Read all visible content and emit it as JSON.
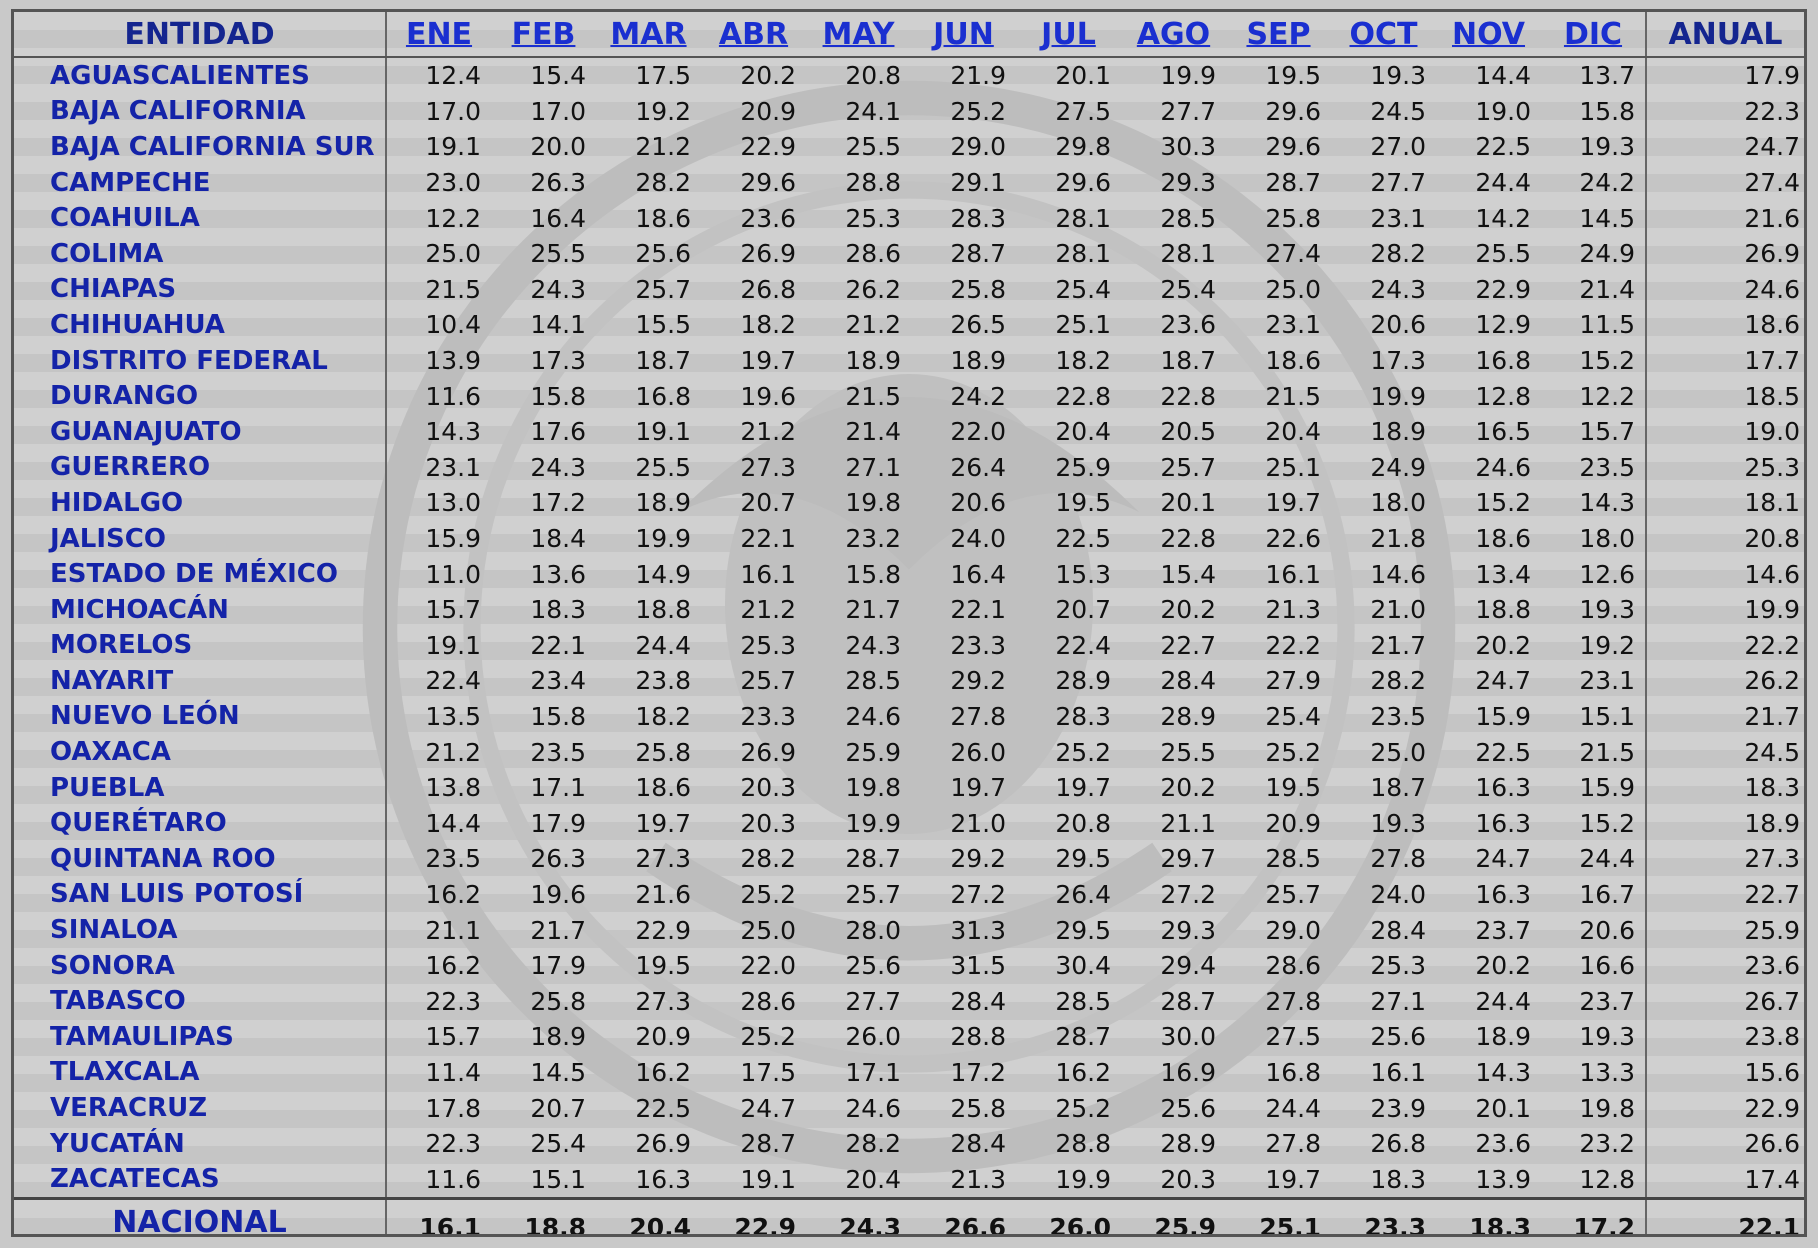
{
  "table": {
    "header_entity": "ENTIDAD",
    "header_annual": "ANUAL",
    "months": [
      "ENE",
      "FEB",
      "MAR",
      "ABR",
      "MAY",
      "JUN",
      "JUL",
      "AGO",
      "SEP",
      "OCT",
      "NOV",
      "DIC"
    ],
    "rows": [
      {
        "name": "AGUASCALIENTES",
        "values": [
          "12.4",
          "15.4",
          "17.5",
          "20.2",
          "20.8",
          "21.9",
          "20.1",
          "19.9",
          "19.5",
          "19.3",
          "14.4",
          "13.7"
        ],
        "annual": "17.9"
      },
      {
        "name": "BAJA CALIFORNIA",
        "values": [
          "17.0",
          "17.0",
          "19.2",
          "20.9",
          "24.1",
          "25.2",
          "27.5",
          "27.7",
          "29.6",
          "24.5",
          "19.0",
          "15.8"
        ],
        "annual": "22.3"
      },
      {
        "name": "BAJA CALIFORNIA SUR",
        "values": [
          "19.1",
          "20.0",
          "21.2",
          "22.9",
          "25.5",
          "29.0",
          "29.8",
          "30.3",
          "29.6",
          "27.0",
          "22.5",
          "19.3"
        ],
        "annual": "24.7"
      },
      {
        "name": "CAMPECHE",
        "values": [
          "23.0",
          "26.3",
          "28.2",
          "29.6",
          "28.8",
          "29.1",
          "29.6",
          "29.3",
          "28.7",
          "27.7",
          "24.4",
          "24.2"
        ],
        "annual": "27.4"
      },
      {
        "name": "COAHUILA",
        "values": [
          "12.2",
          "16.4",
          "18.6",
          "23.6",
          "25.3",
          "28.3",
          "28.1",
          "28.5",
          "25.8",
          "23.1",
          "14.2",
          "14.5"
        ],
        "annual": "21.6"
      },
      {
        "name": "COLIMA",
        "values": [
          "25.0",
          "25.5",
          "25.6",
          "26.9",
          "28.6",
          "28.7",
          "28.1",
          "28.1",
          "27.4",
          "28.2",
          "25.5",
          "24.9"
        ],
        "annual": "26.9"
      },
      {
        "name": "CHIAPAS",
        "values": [
          "21.5",
          "24.3",
          "25.7",
          "26.8",
          "26.2",
          "25.8",
          "25.4",
          "25.4",
          "25.0",
          "24.3",
          "22.9",
          "21.4"
        ],
        "annual": "24.6"
      },
      {
        "name": "CHIHUAHUA",
        "values": [
          "10.4",
          "14.1",
          "15.5",
          "18.2",
          "21.2",
          "26.5",
          "25.1",
          "23.6",
          "23.1",
          "20.6",
          "12.9",
          "11.5"
        ],
        "annual": "18.6"
      },
      {
        "name": "DISTRITO FEDERAL",
        "values": [
          "13.9",
          "17.3",
          "18.7",
          "19.7",
          "18.9",
          "18.9",
          "18.2",
          "18.7",
          "18.6",
          "17.3",
          "16.8",
          "15.2"
        ],
        "annual": "17.7"
      },
      {
        "name": "DURANGO",
        "values": [
          "11.6",
          "15.8",
          "16.8",
          "19.6",
          "21.5",
          "24.2",
          "22.8",
          "22.8",
          "21.5",
          "19.9",
          "12.8",
          "12.2"
        ],
        "annual": "18.5"
      },
      {
        "name": "GUANAJUATO",
        "values": [
          "14.3",
          "17.6",
          "19.1",
          "21.2",
          "21.4",
          "22.0",
          "20.4",
          "20.5",
          "20.4",
          "18.9",
          "16.5",
          "15.7"
        ],
        "annual": "19.0"
      },
      {
        "name": "GUERRERO",
        "values": [
          "23.1",
          "24.3",
          "25.5",
          "27.3",
          "27.1",
          "26.4",
          "25.9",
          "25.7",
          "25.1",
          "24.9",
          "24.6",
          "23.5"
        ],
        "annual": "25.3"
      },
      {
        "name": "HIDALGO",
        "values": [
          "13.0",
          "17.2",
          "18.9",
          "20.7",
          "19.8",
          "20.6",
          "19.5",
          "20.1",
          "19.7",
          "18.0",
          "15.2",
          "14.3"
        ],
        "annual": "18.1"
      },
      {
        "name": "JALISCO",
        "values": [
          "15.9",
          "18.4",
          "19.9",
          "22.1",
          "23.2",
          "24.0",
          "22.5",
          "22.8",
          "22.6",
          "21.8",
          "18.6",
          "18.0"
        ],
        "annual": "20.8"
      },
      {
        "name": "ESTADO DE MÉXICO",
        "values": [
          "11.0",
          "13.6",
          "14.9",
          "16.1",
          "15.8",
          "16.4",
          "15.3",
          "15.4",
          "16.1",
          "14.6",
          "13.4",
          "12.6"
        ],
        "annual": "14.6"
      },
      {
        "name": "MICHOACÁN",
        "values": [
          "15.7",
          "18.3",
          "18.8",
          "21.2",
          "21.7",
          "22.1",
          "20.7",
          "20.2",
          "21.3",
          "21.0",
          "18.8",
          "19.3"
        ],
        "annual": "19.9"
      },
      {
        "name": "MORELOS",
        "values": [
          "19.1",
          "22.1",
          "24.4",
          "25.3",
          "24.3",
          "23.3",
          "22.4",
          "22.7",
          "22.2",
          "21.7",
          "20.2",
          "19.2"
        ],
        "annual": "22.2"
      },
      {
        "name": "NAYARIT",
        "values": [
          "22.4",
          "23.4",
          "23.8",
          "25.7",
          "28.5",
          "29.2",
          "28.9",
          "28.4",
          "27.9",
          "28.2",
          "24.7",
          "23.1"
        ],
        "annual": "26.2"
      },
      {
        "name": "NUEVO LEÓN",
        "values": [
          "13.5",
          "15.8",
          "18.2",
          "23.3",
          "24.6",
          "27.8",
          "28.3",
          "28.9",
          "25.4",
          "23.5",
          "15.9",
          "15.1"
        ],
        "annual": "21.7"
      },
      {
        "name": "OAXACA",
        "values": [
          "21.2",
          "23.5",
          "25.8",
          "26.9",
          "25.9",
          "26.0",
          "25.2",
          "25.5",
          "25.2",
          "25.0",
          "22.5",
          "21.5"
        ],
        "annual": "24.5"
      },
      {
        "name": "PUEBLA",
        "values": [
          "13.8",
          "17.1",
          "18.6",
          "20.3",
          "19.8",
          "19.7",
          "19.7",
          "20.2",
          "19.5",
          "18.7",
          "16.3",
          "15.9"
        ],
        "annual": "18.3"
      },
      {
        "name": "QUERÉTARO",
        "values": [
          "14.4",
          "17.9",
          "19.7",
          "20.3",
          "19.9",
          "21.0",
          "20.8",
          "21.1",
          "20.9",
          "19.3",
          "16.3",
          "15.2"
        ],
        "annual": "18.9"
      },
      {
        "name": "QUINTANA ROO",
        "values": [
          "23.5",
          "26.3",
          "27.3",
          "28.2",
          "28.7",
          "29.2",
          "29.5",
          "29.7",
          "28.5",
          "27.8",
          "24.7",
          "24.4"
        ],
        "annual": "27.3"
      },
      {
        "name": "SAN LUIS POTOSÍ",
        "values": [
          "16.2",
          "19.6",
          "21.6",
          "25.2",
          "25.7",
          "27.2",
          "26.4",
          "27.2",
          "25.7",
          "24.0",
          "16.3",
          "16.7"
        ],
        "annual": "22.7"
      },
      {
        "name": "SINALOA",
        "values": [
          "21.1",
          "21.7",
          "22.9",
          "25.0",
          "28.0",
          "31.3",
          "29.5",
          "29.3",
          "29.0",
          "28.4",
          "23.7",
          "20.6"
        ],
        "annual": "25.9"
      },
      {
        "name": "SONORA",
        "values": [
          "16.2",
          "17.9",
          "19.5",
          "22.0",
          "25.6",
          "31.5",
          "30.4",
          "29.4",
          "28.6",
          "25.3",
          "20.2",
          "16.6"
        ],
        "annual": "23.6"
      },
      {
        "name": "TABASCO",
        "values": [
          "22.3",
          "25.8",
          "27.3",
          "28.6",
          "27.7",
          "28.4",
          "28.5",
          "28.7",
          "27.8",
          "27.1",
          "24.4",
          "23.7"
        ],
        "annual": "26.7"
      },
      {
        "name": "TAMAULIPAS",
        "values": [
          "15.7",
          "18.9",
          "20.9",
          "25.2",
          "26.0",
          "28.8",
          "28.7",
          "30.0",
          "27.5",
          "25.6",
          "18.9",
          "19.3"
        ],
        "annual": "23.8"
      },
      {
        "name": "TLAXCALA",
        "values": [
          "11.4",
          "14.5",
          "16.2",
          "17.5",
          "17.1",
          "17.2",
          "16.2",
          "16.9",
          "16.8",
          "16.1",
          "14.3",
          "13.3"
        ],
        "annual": "15.6"
      },
      {
        "name": "VERACRUZ",
        "values": [
          "17.8",
          "20.7",
          "22.5",
          "24.7",
          "24.6",
          "25.8",
          "25.2",
          "25.6",
          "24.4",
          "23.9",
          "20.1",
          "19.8"
        ],
        "annual": "22.9"
      },
      {
        "name": "YUCATÁN",
        "values": [
          "22.3",
          "25.4",
          "26.9",
          "28.7",
          "28.2",
          "28.4",
          "28.8",
          "28.9",
          "27.8",
          "26.8",
          "23.6",
          "23.2"
        ],
        "annual": "26.6"
      },
      {
        "name": "ZACATECAS",
        "values": [
          "11.6",
          "15.1",
          "16.3",
          "19.1",
          "20.4",
          "21.3",
          "19.9",
          "20.3",
          "19.7",
          "18.3",
          "13.9",
          "12.8"
        ],
        "annual": "17.4"
      }
    ],
    "total": {
      "name": "NACIONAL",
      "values": [
        "16.1",
        "18.8",
        "20.4",
        "22.9",
        "24.3",
        "26.6",
        "26.0",
        "25.9",
        "25.1",
        "23.3",
        "18.3",
        "17.2"
      ],
      "annual": "22.1"
    }
  }
}
